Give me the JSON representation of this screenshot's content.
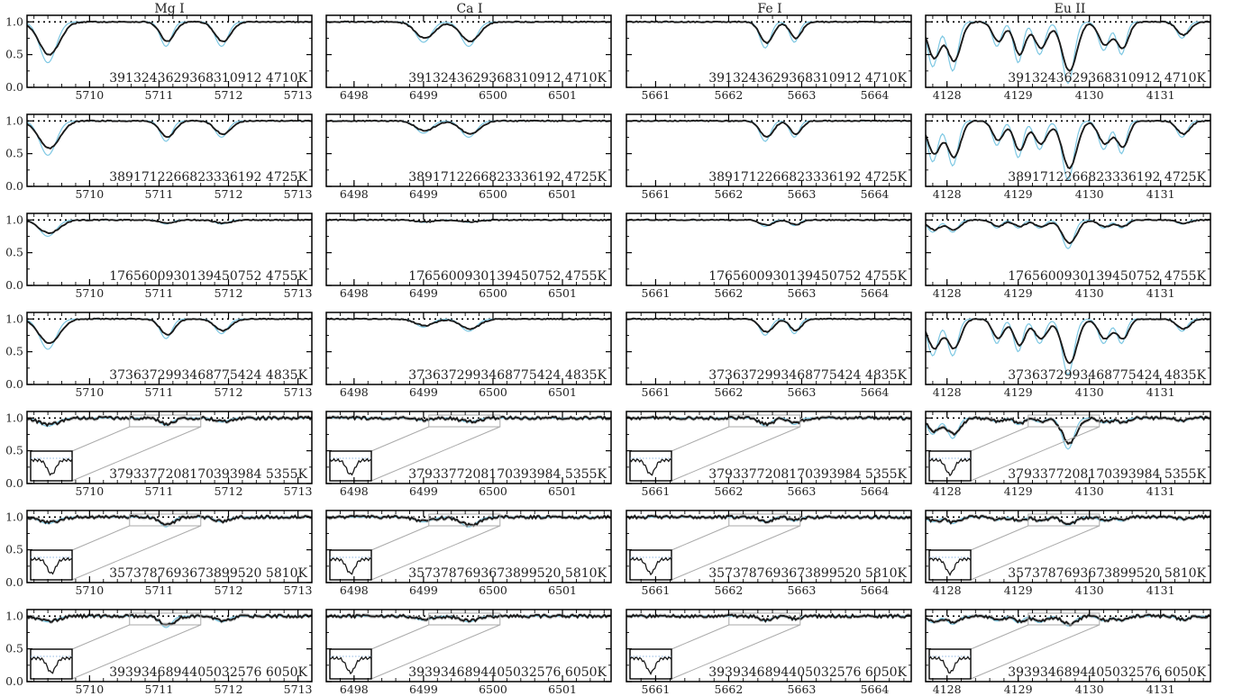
{
  "figure": {
    "columns": [
      "Mg I",
      "Ca I",
      "Fe I",
      "Eu II"
    ],
    "colors": {
      "observed": "#1a1a1a",
      "model": "#7ec8e3",
      "band": "#bdbdbd",
      "axis": "#000000"
    }
  },
  "chart_data": {
    "type": "line",
    "ylim": [
      0,
      1.1
    ],
    "yticks": [
      "0.0",
      "0.5",
      "1.0"
    ],
    "continuum": 1.0,
    "columns": [
      {
        "title": "Mg I",
        "xlim": [
          5709.1,
          5713.2
        ],
        "xticks": [
          "5710",
          "5711",
          "5712",
          "5713"
        ],
        "lines": [
          {
            "center": 5709.4,
            "width": 0.13
          },
          {
            "center": 5711.1,
            "width": 0.09
          },
          {
            "center": 5711.9,
            "width": 0.1
          }
        ],
        "depths": [
          [
            0.5,
            0.3,
            0.3
          ],
          [
            0.42,
            0.25,
            0.2
          ],
          [
            0.2,
            0.05,
            0.05
          ],
          [
            0.37,
            0.24,
            0.18
          ],
          [
            0.1,
            0.09,
            0.05
          ],
          [
            0.08,
            0.12,
            0.06
          ],
          [
            0.07,
            0.14,
            0.07
          ]
        ]
      },
      {
        "title": "Ca I",
        "xlim": [
          6497.6,
          6501.7
        ],
        "xticks": [
          "6498",
          "6499",
          "6500",
          "6501"
        ],
        "lines": [
          {
            "center": 6499.0,
            "width": 0.12
          },
          {
            "center": 6499.65,
            "width": 0.12
          }
        ],
        "depths": [
          [
            0.25,
            0.3
          ],
          [
            0.15,
            0.2
          ],
          [
            0.03,
            0.03
          ],
          [
            0.1,
            0.15
          ],
          [
            0.03,
            0.05
          ],
          [
            0.06,
            0.12
          ],
          [
            0.05,
            0.07
          ]
        ]
      },
      {
        "title": "Fe I",
        "xlim": [
          5660.6,
          5664.5
        ],
        "xticks": [
          "5661",
          "5662",
          "5663",
          "5664"
        ],
        "lines": [
          {
            "center": 5662.5,
            "width": 0.08
          },
          {
            "center": 5662.9,
            "width": 0.07
          }
        ],
        "depths": [
          [
            0.32,
            0.25
          ],
          [
            0.25,
            0.2
          ],
          [
            0.08,
            0.07
          ],
          [
            0.2,
            0.18
          ],
          [
            0.1,
            0.08
          ],
          [
            0.06,
            0.05
          ],
          [
            0.06,
            0.04
          ]
        ]
      },
      {
        "title": "Eu II",
        "xlim": [
          4127.7,
          4131.7
        ],
        "xticks": [
          "4128",
          "4129",
          "4130",
          "4131"
        ],
        "lines": [
          {
            "center": 4127.8,
            "width": 0.08
          },
          {
            "center": 4128.08,
            "width": 0.08
          },
          {
            "center": 4128.7,
            "width": 0.07
          },
          {
            "center": 4129.0,
            "width": 0.07
          },
          {
            "center": 4129.3,
            "width": 0.08
          },
          {
            "center": 4129.7,
            "width": 0.09
          },
          {
            "center": 4130.2,
            "width": 0.08
          },
          {
            "center": 4130.45,
            "width": 0.07
          },
          {
            "center": 4131.3,
            "width": 0.08
          }
        ],
        "depths": [
          [
            0.55,
            0.6,
            0.3,
            0.5,
            0.4,
            0.75,
            0.35,
            0.4,
            0.2
          ],
          [
            0.5,
            0.55,
            0.3,
            0.45,
            0.35,
            0.72,
            0.35,
            0.4,
            0.2
          ],
          [
            0.15,
            0.15,
            0.1,
            0.1,
            0.1,
            0.35,
            0.1,
            0.1,
            0.05
          ],
          [
            0.45,
            0.45,
            0.3,
            0.4,
            0.3,
            0.68,
            0.3,
            0.3,
            0.15
          ],
          [
            0.2,
            0.25,
            0.05,
            0.08,
            0.05,
            0.38,
            0.06,
            0.06,
            0.04
          ],
          [
            0.06,
            0.08,
            0.04,
            0.05,
            0.05,
            0.1,
            0.05,
            0.05,
            0.03
          ],
          [
            0.08,
            0.1,
            0.06,
            0.08,
            0.08,
            0.12,
            0.06,
            0.06,
            0.05
          ]
        ]
      }
    ],
    "rows": [
      {
        "label": "3913243629368310912 4710K",
        "inset": false
      },
      {
        "label": "3891712266823336192 4725K",
        "inset": false
      },
      {
        "label": "1765600930139450752 4755K",
        "inset": false
      },
      {
        "label": "3736372993468775424 4835K",
        "inset": false
      },
      {
        "label": "3793377208170393984 5355K",
        "inset": true
      },
      {
        "label": "3573787693673899520 5810K",
        "inset": true
      },
      {
        "label": "3939346894405032576 6050K",
        "inset": true
      }
    ]
  }
}
